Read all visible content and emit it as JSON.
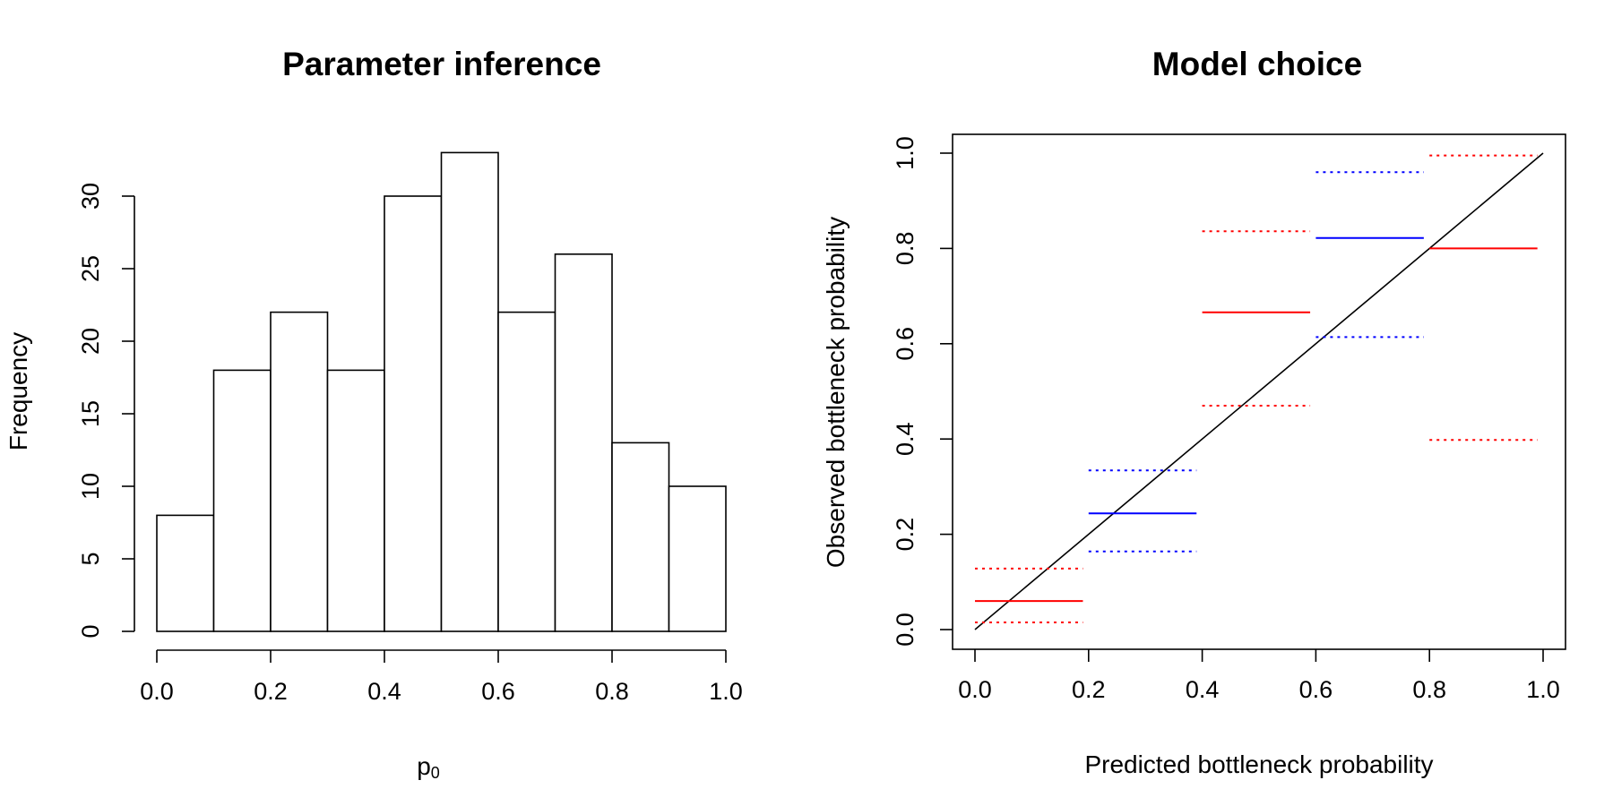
{
  "chart_data": [
    {
      "type": "bar",
      "title": "Parameter inference",
      "xlabel": "p",
      "xlabel_subscript": "0",
      "ylabel": "Frequency",
      "bins": [
        [
          0.0,
          0.1
        ],
        [
          0.1,
          0.2
        ],
        [
          0.2,
          0.3
        ],
        [
          0.3,
          0.4
        ],
        [
          0.4,
          0.5
        ],
        [
          0.5,
          0.6
        ],
        [
          0.6,
          0.7
        ],
        [
          0.7,
          0.8
        ],
        [
          0.8,
          0.9
        ],
        [
          0.9,
          1.0
        ]
      ],
      "values": [
        8,
        18,
        22,
        18,
        30,
        33,
        22,
        26,
        13,
        10
      ],
      "xlim": [
        0,
        1
      ],
      "ylim": [
        0,
        33
      ],
      "x_ticks": [
        "0.0",
        "0.2",
        "0.4",
        "0.6",
        "0.8",
        "1.0"
      ],
      "y_ticks": [
        "0",
        "5",
        "10",
        "15",
        "20",
        "25",
        "30"
      ],
      "grid": false
    },
    {
      "type": "line",
      "title": "Model choice",
      "xlabel": "Predicted bottleneck probability",
      "ylabel": "Observed bottleneck probability",
      "xlim": [
        0,
        1
      ],
      "ylim": [
        0,
        1
      ],
      "x_ticks": [
        "0.0",
        "0.2",
        "0.4",
        "0.6",
        "0.8",
        "1.0"
      ],
      "y_ticks": [
        "0.0",
        "0.2",
        "0.4",
        "0.6",
        "0.8",
        "1.0"
      ],
      "diagonal": [
        [
          0,
          0
        ],
        [
          1,
          1
        ]
      ],
      "segments": [
        {
          "x": [
            0.0,
            0.19
          ],
          "mean": 0.06,
          "lower": 0.015,
          "upper": 0.128,
          "color": "#ff0000"
        },
        {
          "x": [
            0.2,
            0.39
          ],
          "mean": 0.244,
          "lower": 0.164,
          "upper": 0.334,
          "color": "#0000ff"
        },
        {
          "x": [
            0.4,
            0.59
          ],
          "mean": 0.666,
          "lower": 0.47,
          "upper": 0.836,
          "color": "#ff0000"
        },
        {
          "x": [
            0.6,
            0.79
          ],
          "mean": 0.822,
          "lower": 0.614,
          "upper": 0.96,
          "color": "#0000ff"
        },
        {
          "x": [
            0.8,
            0.99
          ],
          "mean": 0.8,
          "lower": 0.398,
          "upper": 0.995,
          "color": "#ff0000"
        }
      ],
      "grid": false
    }
  ]
}
